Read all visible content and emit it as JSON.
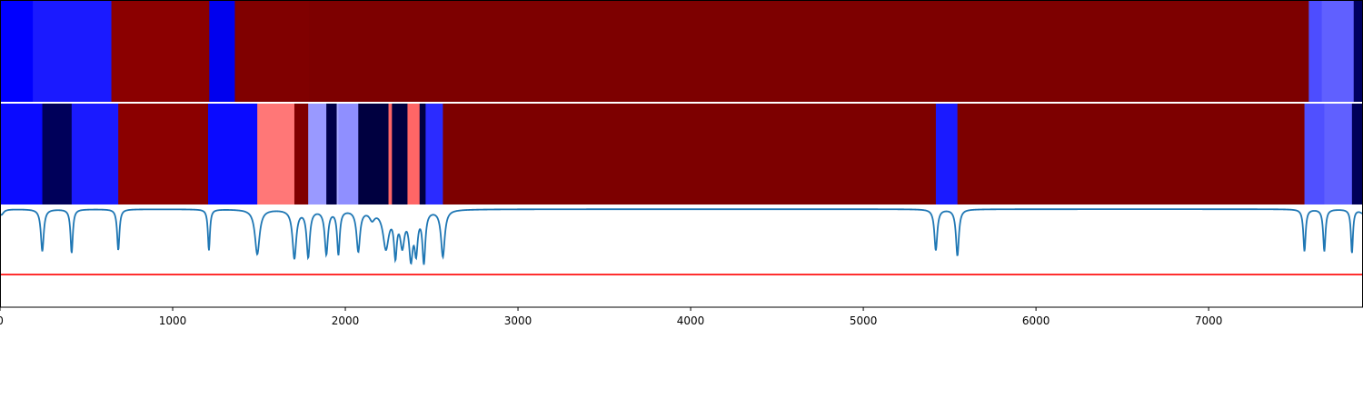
{
  "chart_data": {
    "type": "heatmap",
    "title": "",
    "xlabel": "",
    "ylabel": "",
    "xlim": [
      0,
      7894
    ],
    "x_ticks": [
      {
        "value": 0,
        "label": "0"
      },
      {
        "value": 1000,
        "label": "1000"
      },
      {
        "value": 2000,
        "label": "2000"
      },
      {
        "value": 3000,
        "label": "3000"
      },
      {
        "value": 4000,
        "label": "4000"
      },
      {
        "value": 5000,
        "label": "5000"
      },
      {
        "value": 6000,
        "label": "6000"
      },
      {
        "value": 7000,
        "label": "7000"
      }
    ],
    "panels": [
      {
        "name": "track-1",
        "segments": [
          {
            "start": 0,
            "end": 190,
            "color": "#0000ff"
          },
          {
            "start": 190,
            "end": 645,
            "color": "#1a1aff"
          },
          {
            "start": 645,
            "end": 1212,
            "color": "#8b0000"
          },
          {
            "start": 1212,
            "end": 1360,
            "color": "#0000ee"
          },
          {
            "start": 1360,
            "end": 1790,
            "color": "#800000"
          },
          {
            "start": 1790,
            "end": 7580,
            "color": "#7d0000"
          },
          {
            "start": 7580,
            "end": 7655,
            "color": "#4d4dff"
          },
          {
            "start": 7655,
            "end": 7840,
            "color": "#6060ff"
          },
          {
            "start": 7840,
            "end": 7894,
            "color": "#000060"
          }
        ]
      },
      {
        "name": "track-2",
        "segments": [
          {
            "start": 0,
            "end": 245,
            "color": "#0a0aff"
          },
          {
            "start": 245,
            "end": 415,
            "color": "#00005a"
          },
          {
            "start": 415,
            "end": 685,
            "color": "#1a1aff"
          },
          {
            "start": 685,
            "end": 1205,
            "color": "#8b0000"
          },
          {
            "start": 1205,
            "end": 1490,
            "color": "#0a0aff"
          },
          {
            "start": 1490,
            "end": 1705,
            "color": "#ff7777"
          },
          {
            "start": 1705,
            "end": 1785,
            "color": "#800000"
          },
          {
            "start": 1785,
            "end": 1890,
            "color": "#9999ff"
          },
          {
            "start": 1890,
            "end": 1950,
            "color": "#000048"
          },
          {
            "start": 1950,
            "end": 1960,
            "color": "#aaaaff"
          },
          {
            "start": 1960,
            "end": 2075,
            "color": "#8f8fff"
          },
          {
            "start": 2075,
            "end": 2250,
            "color": "#000040"
          },
          {
            "start": 2250,
            "end": 2270,
            "color": "#ff6666"
          },
          {
            "start": 2270,
            "end": 2360,
            "color": "#000040"
          },
          {
            "start": 2360,
            "end": 2430,
            "color": "#ff6666"
          },
          {
            "start": 2430,
            "end": 2465,
            "color": "#000040"
          },
          {
            "start": 2465,
            "end": 2565,
            "color": "#2b2bff"
          },
          {
            "start": 2565,
            "end": 5420,
            "color": "#7d0000"
          },
          {
            "start": 5420,
            "end": 5545,
            "color": "#1a1aff"
          },
          {
            "start": 5545,
            "end": 7555,
            "color": "#7d0000"
          },
          {
            "start": 7555,
            "end": 7670,
            "color": "#5050ff"
          },
          {
            "start": 7670,
            "end": 7830,
            "color": "#6060ff"
          },
          {
            "start": 7830,
            "end": 7894,
            "color": "#000058"
          }
        ]
      }
    ],
    "line": {
      "color": "#1f77b4",
      "baseline": 1.0,
      "ylim": [
        -0.05,
        1.05
      ],
      "dips": [
        {
          "x": 8,
          "depth": 0.06,
          "width": 15
        },
        {
          "x": 245,
          "depth": 0.45,
          "width": 10
        },
        {
          "x": 415,
          "depth": 0.47,
          "width": 8
        },
        {
          "x": 685,
          "depth": 0.44,
          "width": 8
        },
        {
          "x": 1210,
          "depth": 0.44,
          "width": 7
        },
        {
          "x": 1490,
          "depth": 0.48,
          "width": 16
        },
        {
          "x": 1705,
          "depth": 0.52,
          "width": 13
        },
        {
          "x": 1785,
          "depth": 0.5,
          "width": 11
        },
        {
          "x": 1890,
          "depth": 0.47,
          "width": 11
        },
        {
          "x": 1960,
          "depth": 0.47,
          "width": 9
        },
        {
          "x": 2075,
          "depth": 0.44,
          "width": 12
        },
        {
          "x": 2155,
          "depth": 0.09,
          "width": 18
        },
        {
          "x": 2235,
          "depth": 0.4,
          "width": 20
        },
        {
          "x": 2290,
          "depth": 0.44,
          "width": 10
        },
        {
          "x": 2330,
          "depth": 0.35,
          "width": 15
        },
        {
          "x": 2380,
          "depth": 0.48,
          "width": 13
        },
        {
          "x": 2410,
          "depth": 0.4,
          "width": 11
        },
        {
          "x": 2455,
          "depth": 0.54,
          "width": 10
        },
        {
          "x": 2565,
          "depth": 0.5,
          "width": 13
        },
        {
          "x": 5420,
          "depth": 0.44,
          "width": 10
        },
        {
          "x": 5545,
          "depth": 0.5,
          "width": 10
        },
        {
          "x": 7555,
          "depth": 0.45,
          "width": 8
        },
        {
          "x": 7670,
          "depth": 0.45,
          "width": 8
        },
        {
          "x": 7830,
          "depth": 0.47,
          "width": 7
        },
        {
          "x": 7894,
          "depth": 0.04,
          "width": 20
        }
      ]
    },
    "threshold": {
      "value": 0.3,
      "color": "#ff0000"
    }
  }
}
